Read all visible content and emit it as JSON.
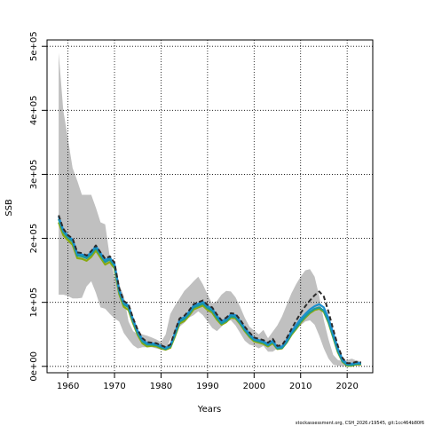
{
  "chart_data": {
    "type": "line",
    "title": "",
    "xlabel": "Years",
    "ylabel": "SSB",
    "xlim": [
      1955.5,
      2025.5
    ],
    "ylim": [
      -10000,
      510000
    ],
    "x_ticks": [
      1960,
      1970,
      1980,
      1990,
      2000,
      2010,
      2020
    ],
    "y_ticks": [
      {
        "value": 0,
        "label": "0e+00"
      },
      {
        "value": 100000,
        "label": "1e+05"
      },
      {
        "value": 200000,
        "label": "2e+05"
      },
      {
        "value": 300000,
        "label": "3e+05"
      },
      {
        "value": 400000,
        "label": "4e+05"
      },
      {
        "value": 500000,
        "label": "5e+05"
      }
    ],
    "grid": true,
    "band": {
      "x": [
        1958,
        1959,
        1960,
        1961,
        1962,
        1963,
        1964,
        1965,
        1966,
        1967,
        1968,
        1969,
        1970,
        1971,
        1972,
        1973,
        1974,
        1975,
        1976,
        1977,
        1978,
        1979,
        1980,
        1981,
        1982,
        1983,
        1984,
        1985,
        1986,
        1987,
        1988,
        1989,
        1990,
        1991,
        1992,
        1993,
        1994,
        1995,
        1996,
        1997,
        1998,
        1999,
        2000,
        2001,
        2002,
        2003,
        2004,
        2005,
        2006,
        2007,
        2008,
        2009,
        2010,
        2011,
        2012,
        2013,
        2014,
        2015,
        2016,
        2017,
        2018,
        2019,
        2020,
        2021,
        2022,
        2023
      ],
      "upper": [
        490000,
        400000,
        355000,
        310000,
        290000,
        268000,
        268000,
        268000,
        248000,
        225000,
        222000,
        170000,
        140000,
        128000,
        110000,
        70000,
        55000,
        50000,
        50000,
        48000,
        45000,
        42000,
        38000,
        50000,
        82000,
        95000,
        106000,
        118000,
        125000,
        133000,
        140000,
        128000,
        112000,
        98000,
        102000,
        112000,
        118000,
        117000,
        108000,
        93000,
        76000,
        62000,
        56000,
        50000,
        57000,
        44000,
        54000,
        64000,
        78000,
        96000,
        114000,
        128000,
        140000,
        150000,
        152000,
        140000,
        110000,
        72000,
        42000,
        18000,
        10000,
        8000,
        10000,
        12000,
        9000,
        8000
      ],
      "lower": [
        112000,
        112000,
        110000,
        106000,
        106000,
        107000,
        125000,
        133000,
        115000,
        92000,
        90000,
        82000,
        75000,
        70000,
        52000,
        42000,
        33000,
        28000,
        30000,
        30000,
        30000,
        28000,
        26000,
        25000,
        42000,
        55000,
        62000,
        68000,
        76000,
        80000,
        86000,
        80000,
        70000,
        60000,
        55000,
        62000,
        70000,
        72000,
        64000,
        52000,
        40000,
        34000,
        32000,
        28000,
        32000,
        23000,
        23000,
        28000,
        33000,
        42000,
        50000,
        58000,
        64000,
        70000,
        72000,
        65000,
        48000,
        28000,
        12000,
        3000,
        1000,
        0,
        1000,
        2000,
        1500,
        1000
      ]
    },
    "series": [
      {
        "color": "#2b2b2b",
        "dashed": true,
        "values": [
          236000,
          215000,
          205000,
          200000,
          178000,
          177000,
          173000,
          180000,
          189000,
          178000,
          168000,
          172000,
          162000,
          122000,
          102000,
          97000,
          75000,
          57000,
          44000,
          38000,
          37000,
          36000,
          33000,
          30000,
          34000,
          55000,
          75000,
          79000,
          87000,
          97000,
          100000,
          103000,
          96000,
          92000,
          81000,
          72000,
          76000,
          83000,
          82000,
          73000,
          62000,
          53000,
          45000,
          43000,
          41000,
          37000,
          43000,
          32000,
          33000,
          44000,
          58000,
          71000,
          83000,
          94000,
          103000,
          111000,
          117000,
          109000,
          85000,
          58000,
          32000,
          13000,
          5000,
          5000,
          7000,
          6000
        ]
      },
      {
        "color": "#1a8fd0",
        "dashed": false,
        "values": [
          234000,
          213000,
          204000,
          198000,
          176000,
          175000,
          172000,
          178000,
          188000,
          177000,
          166000,
          170000,
          160000,
          120000,
          100000,
          95000,
          73000,
          55000,
          42000,
          36000,
          36000,
          35000,
          32000,
          29000,
          33000,
          53000,
          73000,
          77000,
          85000,
          95000,
          98000,
          101000,
          94000,
          90000,
          79000,
          70000,
          74000,
          81000,
          80000,
          71000,
          60000,
          51000,
          43000,
          41000,
          39000,
          35000,
          40000,
          30000,
          31000,
          41000,
          54000,
          64000,
          74000,
          82000,
          89000,
          94000,
          97000,
          92000,
          75000,
          52000,
          28000,
          11000,
          4000,
          4000,
          6000,
          5000
        ]
      },
      {
        "color": "#1a9a9a",
        "dashed": false,
        "values": [
          230000,
          210000,
          201000,
          195000,
          173000,
          172000,
          169000,
          175000,
          185000,
          174000,
          163000,
          167000,
          157000,
          117000,
          97000,
          92000,
          70000,
          52000,
          39000,
          34000,
          34000,
          33000,
          30000,
          27000,
          31000,
          50000,
          70000,
          74000,
          82000,
          92000,
          95000,
          98000,
          91000,
          87000,
          76000,
          67000,
          71000,
          78000,
          77000,
          68000,
          57000,
          48000,
          41000,
          39000,
          37000,
          33000,
          38000,
          28000,
          29000,
          38000,
          51000,
          60000,
          70000,
          78000,
          85000,
          90000,
          92000,
          87000,
          70000,
          47000,
          24000,
          8000,
          2000,
          2000,
          4000,
          4000
        ]
      },
      {
        "color": "#8aaa10",
        "dashed": false,
        "values": [
          225000,
          205000,
          197000,
          190000,
          169000,
          168000,
          165000,
          171000,
          181000,
          170000,
          159000,
          163000,
          153000,
          113000,
          93000,
          88000,
          67000,
          49000,
          36000,
          31000,
          32000,
          31000,
          28000,
          26000,
          29000,
          47000,
          67000,
          71000,
          79000,
          89000,
          92000,
          95000,
          88000,
          84000,
          73000,
          65000,
          69000,
          76000,
          75000,
          66000,
          55000,
          46000,
          39000,
          37000,
          35000,
          31000,
          36000,
          27000,
          28000,
          37000,
          49000,
          58000,
          68000,
          76000,
          83000,
          88000,
          90000,
          85000,
          68000,
          45000,
          22000,
          7000,
          1000,
          1000,
          3000,
          3000
        ]
      }
    ]
  },
  "footnote": "stockassessment.org, CSH_2026.r19545, git:1cc464b80f6"
}
